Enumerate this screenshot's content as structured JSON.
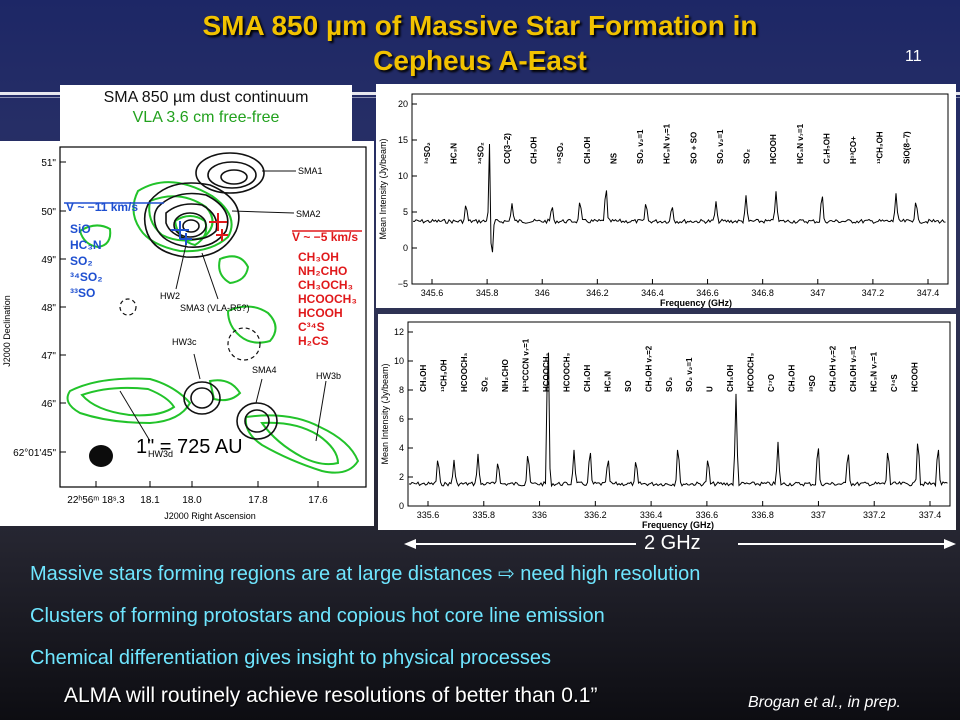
{
  "slide": {
    "title_line1": "SMA 850 µm of Massive Star Formation in",
    "title_line2": "Cepheus A-East",
    "number": "11"
  },
  "legend": {
    "line1": "SMA 850 µm dust continuum",
    "line2": "VLA 3.6 cm free-free"
  },
  "map": {
    "dec_labels": [
      "51\"",
      "50\"",
      "49\"",
      "48\"",
      "47\"",
      "46\"",
      "62°01'45\""
    ],
    "ra_labels": [
      "22ʰ56ᵐ 18ˢ.3",
      "18.1",
      "18.0",
      "17.8",
      "17.6"
    ],
    "ylabel": "J2000 Declination",
    "xlabel": "J2000 Right Ascension",
    "source_labels": [
      "SMA1",
      "SMA2",
      "HW2",
      "SMA3 (VLA-R5?)",
      "HW3c",
      "SMA4",
      "HW3b",
      "HW3d"
    ],
    "blue_velocity": "V ~ −11 km/s",
    "blue_species": [
      "SiO",
      "HC₃N",
      "SO₂",
      "³⁴SO₂",
      "³³SO"
    ],
    "red_velocity": "V ~ −5 km/s",
    "red_species": [
      "CH₃OH",
      "NH₂CHO",
      "CH₃OCH₃",
      "HCOOCH₃",
      "HCOOH",
      "C³⁴S",
      "H₂CS"
    ],
    "scale_text": "1\" = 725 AU",
    "colors": {
      "dust": "#111111",
      "freefree": "#22c32a",
      "blue": "#1e4fd0",
      "red": "#e0191b"
    }
  },
  "spectrum_top": {
    "ylabel": "Mean Intensity (Jy/beam)",
    "xlabel": "Frequency (GHz)",
    "x_ticks": [
      "345.6",
      "345.8",
      "346",
      "346.2",
      "346.4",
      "346.6",
      "346.8",
      "347",
      "347.2",
      "347.4"
    ],
    "y_ticks": [
      "−5",
      "0",
      "5",
      "10",
      "15",
      "20"
    ],
    "lines": [
      "³⁴SO₂",
      "HC₃N",
      "³⁴SO₂",
      "CO(3−2)",
      "CH₃OH",
      "³⁴SO₂",
      "CH₃OH",
      "NS",
      "SO₂ v₂=1",
      "HC₃N v₇=1",
      "SO + SO",
      "SO₂ v₂=1",
      "SO₂",
      "HCOOH",
      "HC₃N v₇=1",
      "C₂H₅OH",
      "H¹³CO+",
      "¹³CH₃OH",
      "SiO(8−7)"
    ]
  },
  "spectrum_bot": {
    "ylabel": "Mean Intensity (Jy/beam)",
    "xlabel": "Frequency (GHz)",
    "x_ticks": [
      "335.6",
      "335.8",
      "336",
      "336.2",
      "336.4",
      "336.6",
      "336.8",
      "337",
      "337.2",
      "337.4"
    ],
    "y_ticks": [
      "0",
      "2",
      "4",
      "6",
      "8",
      "10",
      "12"
    ],
    "lines": [
      "CH₃OH",
      "¹³CH₃OH",
      "HCOOCH₃",
      "SO₂",
      "NH₂CHO",
      "H¹³CCCN v₇=1",
      "HCOOCH₃",
      "HCOOCH₃",
      "CH₃OH",
      "HC₃N",
      "SO",
      "CH₃OH v₇=2",
      "SO₂",
      "SO₂ v₂=1",
      "U",
      "CH₃OH",
      "HCOOCH₃",
      "C¹⁷O",
      "CH₃OH",
      "³³SO",
      "CH₃OH v₇=2",
      "CH₃OH v₇=1",
      "HC₃N v₇=1",
      "C³⁴S",
      "HCOOH"
    ]
  },
  "span_label": "2 GHz",
  "bullets": [
    "Massive stars forming regions are at large distances ⇨ need high resolution",
    "Clusters of forming protostars and copious hot core line emission",
    "Chemical differentiation gives insight to physical processes"
  ],
  "footer": {
    "alma": "ALMA will routinely achieve resolutions of better than 0.1”",
    "citation": "Brogan et al., in prep."
  }
}
